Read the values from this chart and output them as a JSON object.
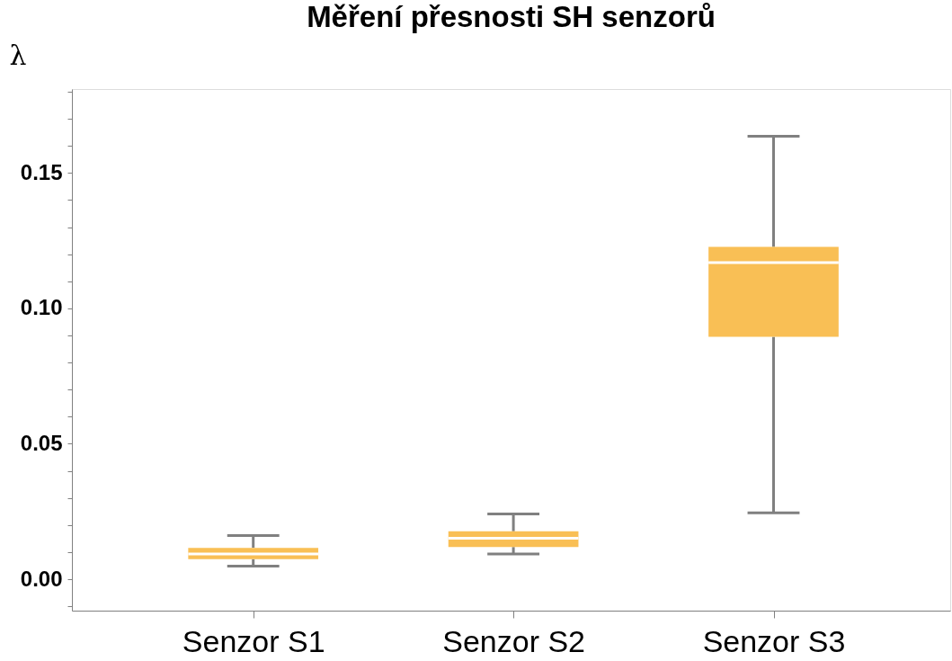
{
  "chart_data": {
    "type": "box",
    "title": "Měření přesnosti SH senzorů",
    "ylabel": "λ",
    "categories": [
      "Senzor S1",
      "Senzor S2",
      "Senzor S3"
    ],
    "boxes": [
      {
        "low": 0.0048,
        "q1": 0.0074,
        "median": 0.0093,
        "q3": 0.0116,
        "high": 0.0161
      },
      {
        "low": 0.0093,
        "q1": 0.0119,
        "median": 0.0151,
        "q3": 0.0177,
        "high": 0.0241
      },
      {
        "low": 0.0245,
        "q1": 0.0895,
        "median": 0.1169,
        "q3": 0.1227,
        "high": 0.1636
      }
    ],
    "color": "#f9bf55",
    "ylim": [
      -0.0116,
      0.181
    ],
    "yticks": [
      {
        "value": -0.01,
        "label": null
      },
      {
        "value": 0,
        "label": "0.00"
      },
      {
        "value": 0.01,
        "label": null
      },
      {
        "value": 0.02,
        "label": null
      },
      {
        "value": 0.03,
        "label": null
      },
      {
        "value": 0.04,
        "label": null
      },
      {
        "value": 0.05,
        "label": "0.05"
      },
      {
        "value": 0.06,
        "label": null
      },
      {
        "value": 0.07,
        "label": null
      },
      {
        "value": 0.08,
        "label": null
      },
      {
        "value": 0.09,
        "label": null
      },
      {
        "value": 0.1,
        "label": "0.10"
      },
      {
        "value": 0.11,
        "label": null
      },
      {
        "value": 0.12,
        "label": null
      },
      {
        "value": 0.13,
        "label": null
      },
      {
        "value": 0.14,
        "label": null
      },
      {
        "value": 0.15,
        "label": "0.15"
      },
      {
        "value": 0.16,
        "label": null
      },
      {
        "value": 0.17,
        "label": null
      },
      {
        "value": 0.18,
        "label": null
      }
    ],
    "grid": false
  }
}
